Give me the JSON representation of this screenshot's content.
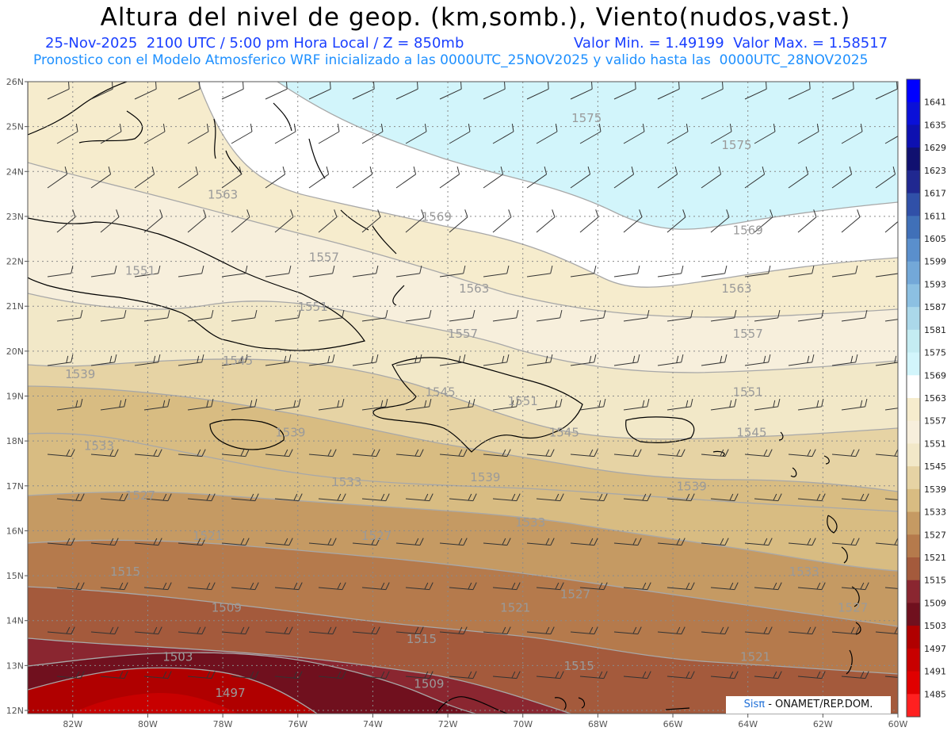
{
  "title": "Altura del nivel de geop. (km,somb.), Viento(nudos,vast.)",
  "subtitle_left": "25-Nov-2025  2100 UTC / 5:00 pm Hora Local / Z = 850mb",
  "subtitle_right": "Valor Min. = 1.49199  Valor Max. = 1.58517",
  "model_line": "Pronostico con el Modelo Atmosferico WRF inicializado a las 0000UTC_25NOV2025 y valido hasta las  0000UTC_28NOV2025",
  "credit_sis": "Sisπ",
  "credit_rest": " - ONAMET/REP.DOM.",
  "lat_labels": [
    "26N",
    "25N",
    "24N",
    "23N",
    "22N",
    "21N",
    "20N",
    "19N",
    "18N",
    "17N",
    "16N",
    "15N",
    "14N",
    "13N",
    "12N"
  ],
  "lon_labels": [
    "82W",
    "80W",
    "78W",
    "76W",
    "74W",
    "72W",
    "70W",
    "68W",
    "66W",
    "64W",
    "62W",
    "60W"
  ],
  "colorbar_levels": [
    "1641",
    "1635",
    "1629",
    "1623",
    "1617",
    "1611",
    "1605",
    "1599",
    "1593",
    "1587",
    "1581",
    "1575",
    "1569",
    "1563",
    "1557",
    "1551",
    "1545",
    "1539",
    "1533",
    "1527",
    "1521",
    "1515",
    "1509",
    "1503",
    "1497",
    "1491",
    "1485"
  ],
  "colorbar_colors": [
    "#0000ff",
    "#0a10d8",
    "#0d10b0",
    "#101070",
    "#202890",
    "#3050a8",
    "#4070b8",
    "#5a8fcc",
    "#73a8d8",
    "#8cc0e2",
    "#abd8ea",
    "#c4ecf2",
    "#d2f5fb",
    "#ffffff",
    "#f6eccd",
    "#f7efdc",
    "#f2e8c8",
    "#e6d3a4",
    "#d8bc82",
    "#c59a63",
    "#b57a4c",
    "#a45a3c",
    "#8a2630",
    "#70101e",
    "#b00000",
    "#c80000",
    "#e00000",
    "#ff2020"
  ],
  "contour_labels": [
    {
      "text": "1575",
      "lon": -68.3,
      "lat": 25.1
    },
    {
      "text": "1575",
      "lon": -64.3,
      "lat": 24.5
    },
    {
      "text": "1563",
      "lon": -78.0,
      "lat": 23.4
    },
    {
      "text": "1569",
      "lon": -72.3,
      "lat": 22.9
    },
    {
      "text": "1569",
      "lon": -64.0,
      "lat": 22.6
    },
    {
      "text": "1557",
      "lon": -75.3,
      "lat": 22.0
    },
    {
      "text": "1563",
      "lon": -71.3,
      "lat": 21.3
    },
    {
      "text": "1563",
      "lon": -64.3,
      "lat": 21.3
    },
    {
      "text": "1551",
      "lon": -80.2,
      "lat": 21.7
    },
    {
      "text": "1551",
      "lon": -75.6,
      "lat": 20.9
    },
    {
      "text": "1557",
      "lon": -71.6,
      "lat": 20.3
    },
    {
      "text": "1557",
      "lon": -64.0,
      "lat": 20.3
    },
    {
      "text": "1545",
      "lon": -77.6,
      "lat": 19.7
    },
    {
      "text": "1539",
      "lon": -81.8,
      "lat": 19.4
    },
    {
      "text": "1545",
      "lon": -72.2,
      "lat": 19.0
    },
    {
      "text": "1551",
      "lon": -70.0,
      "lat": 18.8
    },
    {
      "text": "1551",
      "lon": -64.0,
      "lat": 19.0
    },
    {
      "text": "1539",
      "lon": -76.2,
      "lat": 18.1
    },
    {
      "text": "1545",
      "lon": -68.9,
      "lat": 18.1
    },
    {
      "text": "1545",
      "lon": -63.9,
      "lat": 18.1
    },
    {
      "text": "1533",
      "lon": -81.3,
      "lat": 17.8
    },
    {
      "text": "1533",
      "lon": -74.7,
      "lat": 17.0
    },
    {
      "text": "1539",
      "lon": -71.0,
      "lat": 17.1
    },
    {
      "text": "1539",
      "lon": -65.5,
      "lat": 16.9
    },
    {
      "text": "1527",
      "lon": -80.2,
      "lat": 16.7
    },
    {
      "text": "1533",
      "lon": -69.8,
      "lat": 16.1
    },
    {
      "text": "1521",
      "lon": -78.4,
      "lat": 15.8
    },
    {
      "text": "1527",
      "lon": -73.9,
      "lat": 15.8
    },
    {
      "text": "1515",
      "lon": -80.6,
      "lat": 15.0
    },
    {
      "text": "1533",
      "lon": -62.5,
      "lat": 15.0
    },
    {
      "text": "1527",
      "lon": -68.6,
      "lat": 14.5
    },
    {
      "text": "1509",
      "lon": -77.9,
      "lat": 14.2
    },
    {
      "text": "1521",
      "lon": -70.2,
      "lat": 14.2
    },
    {
      "text": "1527",
      "lon": -61.2,
      "lat": 14.2
    },
    {
      "text": "1515",
      "lon": -72.7,
      "lat": 13.5
    },
    {
      "text": "1503",
      "lon": -79.2,
      "lat": 13.1
    },
    {
      "text": "1515",
      "lon": -68.5,
      "lat": 12.9
    },
    {
      "text": "1521",
      "lon": -63.8,
      "lat": 13.1
    },
    {
      "text": "1509",
      "lon": -72.5,
      "lat": 12.5
    },
    {
      "text": "1497",
      "lon": -77.8,
      "lat": 12.3
    }
  ]
}
